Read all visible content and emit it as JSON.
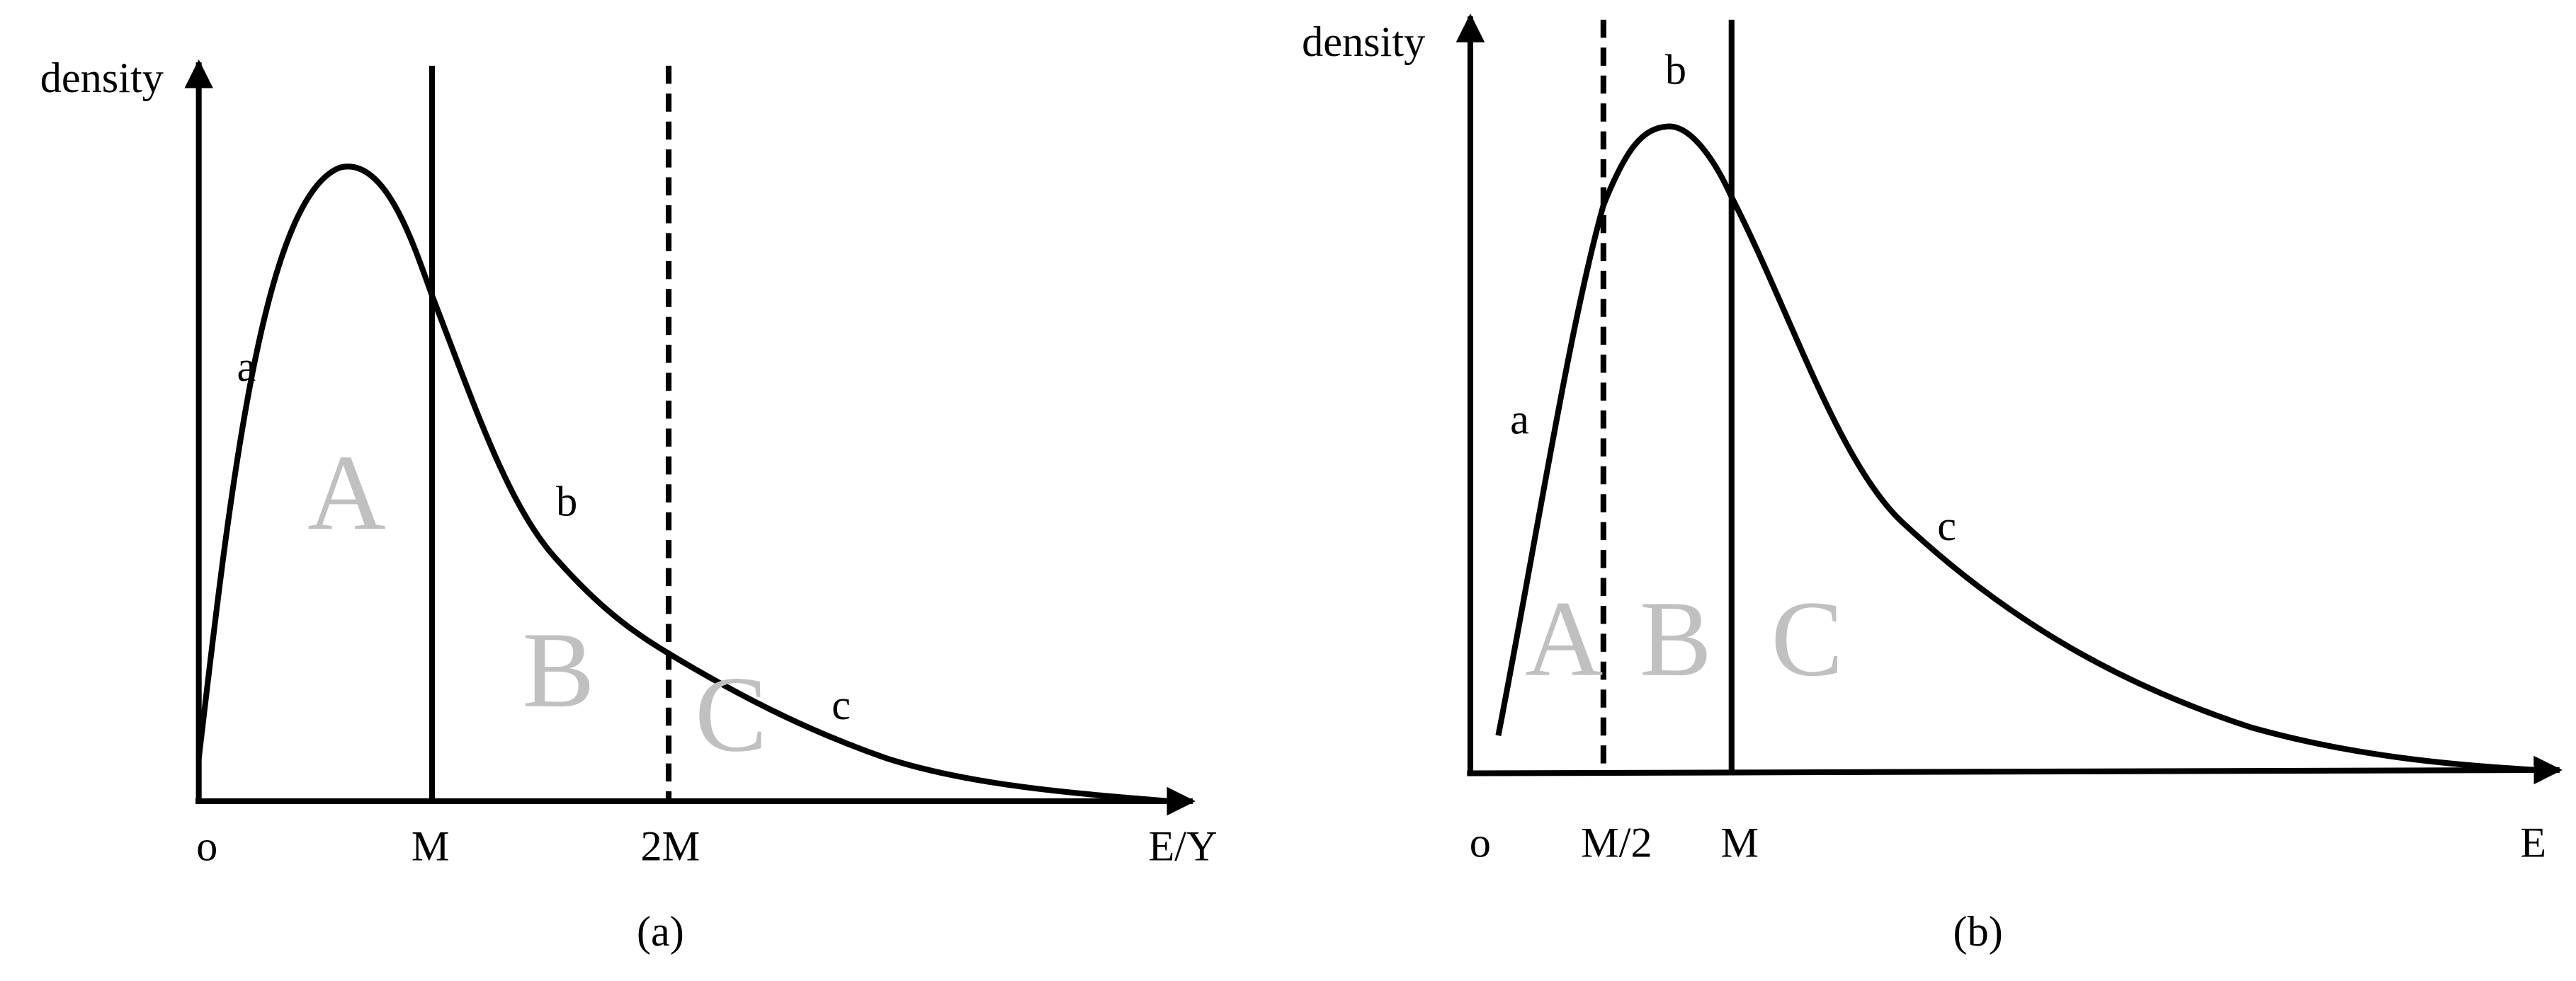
{
  "panels": [
    {
      "y_axis_label": "density",
      "curve_labels": [
        "a",
        "b",
        "c"
      ],
      "region_labels": [
        "A",
        "B",
        "C"
      ],
      "x_ticks": [
        "o",
        "M",
        "2M",
        "E/Y"
      ],
      "caption": "(a)"
    },
    {
      "y_axis_label": "density",
      "curve_labels": [
        "a",
        "b",
        "c"
      ],
      "region_labels": [
        "A",
        "B",
        "C"
      ],
      "x_ticks": [
        "o",
        "M/2",
        "M",
        "E"
      ],
      "caption": "(b)"
    }
  ]
}
